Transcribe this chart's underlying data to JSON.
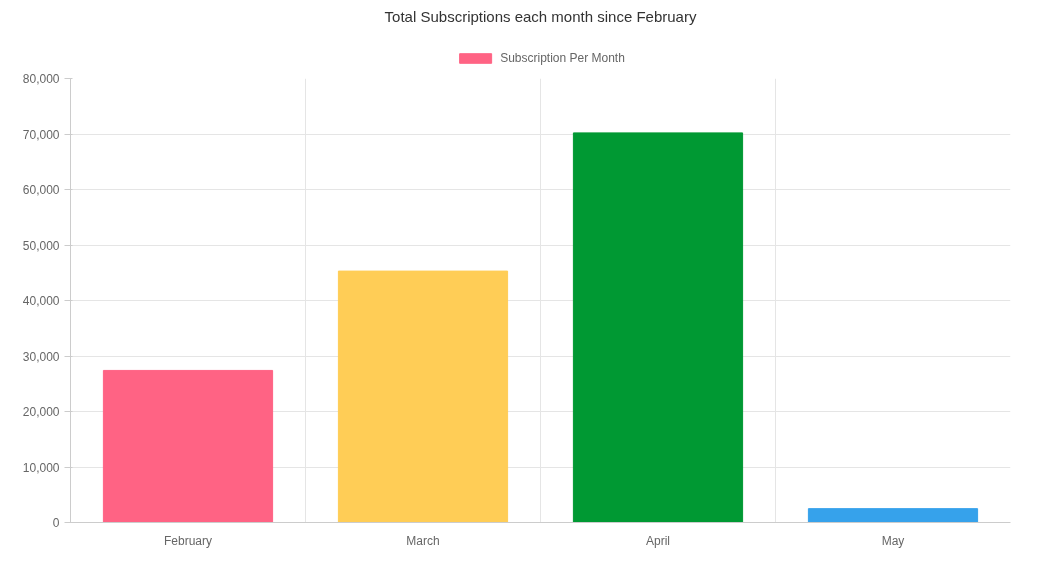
{
  "chart_data": {
    "type": "bar",
    "title": "Total Subscriptions each month since February",
    "categories": [
      "February",
      "March",
      "April",
      "May"
    ],
    "series": [
      {
        "name": "Subscription Per Month",
        "color": "#ff6384",
        "colors": [
          "#ff6384",
          "#ffcd56",
          "#009933",
          "#36a2eb"
        ],
        "values": [
          27400,
          45300,
          70200,
          2500
        ]
      }
    ],
    "ylim": [
      0,
      80000
    ],
    "yticks": [
      {
        "value": 0,
        "label": "0"
      },
      {
        "value": 10000,
        "label": "10,000"
      },
      {
        "value": 20000,
        "label": "20,000"
      },
      {
        "value": 30000,
        "label": "30,000"
      },
      {
        "value": 40000,
        "label": "40,000"
      },
      {
        "value": 50000,
        "label": "50,000"
      },
      {
        "value": 60000,
        "label": "60,000"
      },
      {
        "value": 70000,
        "label": "70,000"
      },
      {
        "value": 80000,
        "label": "80,000"
      }
    ],
    "grid": true,
    "legend": "top"
  }
}
